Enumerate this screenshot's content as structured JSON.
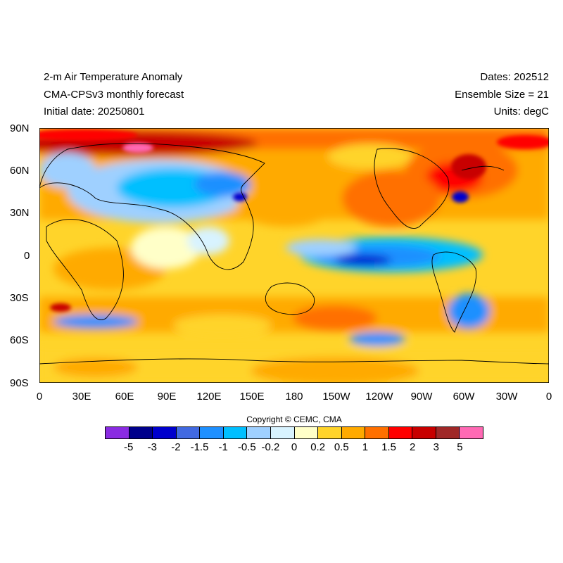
{
  "header": {
    "title": "2-m Air Temperature Anomaly",
    "model": "CMA-CPSv3 monthly forecast",
    "initial_date": "Initial date: 20250801",
    "dates": "Dates: 202512",
    "ensemble": "Ensemble Size = 21",
    "units": "Units: degC"
  },
  "axes": {
    "lat_labels": [
      "90N",
      "60N",
      "30N",
      "0",
      "30S",
      "60S",
      "90S"
    ],
    "lon_labels": [
      "0",
      "30E",
      "60E",
      "90E",
      "120E",
      "150E",
      "180",
      "150W",
      "120W",
      "90W",
      "60W",
      "30W",
      "0"
    ]
  },
  "copyright": "Copyright © CEMC, CMA",
  "colorbar": {
    "colors": [
      "#8a2be2",
      "#00008b",
      "#0000cd",
      "#4169e1",
      "#1e90ff",
      "#00bfff",
      "#9fd0ff",
      "#d8f3ff",
      "#ffffc8",
      "#ffd42a",
      "#ffaa00",
      "#ff7000",
      "#ff0000",
      "#c80000",
      "#a02828",
      "#ff69b4"
    ],
    "labels": [
      "-5",
      "-3",
      "-2",
      "-1.5",
      "-1",
      "-0.5",
      "-0.2",
      "0",
      "0.2",
      "0.5",
      "1",
      "1.5",
      "2",
      "3",
      "5"
    ]
  }
}
